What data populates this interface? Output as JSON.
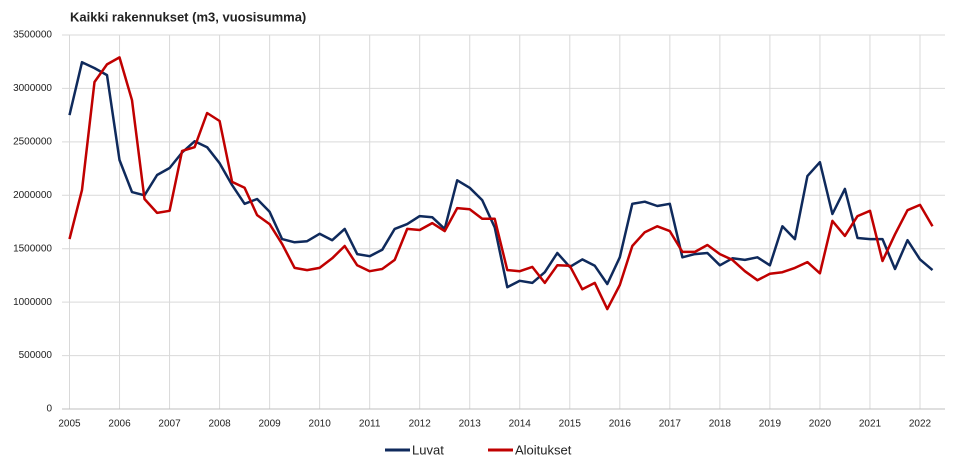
{
  "chart_data": {
    "type": "line",
    "title": "Kaikki rakennukset (m3, vuosisumma)",
    "x": [
      2005,
      2005.25,
      2005.5,
      2005.75,
      2006,
      2006.25,
      2006.5,
      2006.75,
      2007,
      2007.25,
      2007.5,
      2007.75,
      2008,
      2008.25,
      2008.5,
      2008.75,
      2009,
      2009.25,
      2009.5,
      2009.75,
      2010,
      2010.25,
      2010.5,
      2010.75,
      2011,
      2011.25,
      2011.5,
      2011.75,
      2012,
      2012.25,
      2012.5,
      2012.75,
      2013,
      2013.25,
      2013.5,
      2013.75,
      2014,
      2014.25,
      2014.5,
      2014.75,
      2015,
      2015.25,
      2015.5,
      2015.75,
      2016,
      2016.25,
      2016.5,
      2016.75,
      2017,
      2017.25,
      2017.5,
      2017.75,
      2018,
      2018.25,
      2018.5,
      2018.75,
      2019,
      2019.25,
      2019.5,
      2019.75,
      2020,
      2020.25,
      2020.5,
      2020.75,
      2021,
      2021.25,
      2021.5,
      2021.75,
      2022,
      2022.25
    ],
    "series": [
      {
        "name": "Luvat",
        "color": "#0f2a5c",
        "values": [
          2750000,
          3245000,
          3190000,
          3125000,
          2330000,
          2030000,
          2000000,
          2190000,
          2255000,
          2400000,
          2505000,
          2450000,
          2300000,
          2095000,
          1920000,
          1965000,
          1845000,
          1590000,
          1560000,
          1570000,
          1640000,
          1580000,
          1685000,
          1450000,
          1430000,
          1490000,
          1685000,
          1730000,
          1805000,
          1795000,
          1685000,
          2140000,
          2070000,
          1955000,
          1700000,
          1140000,
          1200000,
          1180000,
          1280000,
          1460000,
          1330000,
          1400000,
          1340000,
          1170000,
          1420000,
          1920000,
          1940000,
          1900000,
          1920000,
          1420000,
          1450000,
          1460000,
          1345000,
          1410000,
          1395000,
          1420000,
          1345000,
          1710000,
          1590000,
          2180000,
          2310000,
          1825000,
          2060000,
          1600000,
          1590000,
          1590000,
          1310000,
          1580000,
          1400000,
          1300000
        ]
      },
      {
        "name": "Aloitukset",
        "color": "#c00000",
        "values": [
          1590000,
          2050000,
          3060000,
          3225000,
          3290000,
          2890000,
          1965000,
          1835000,
          1855000,
          2415000,
          2450000,
          2770000,
          2695000,
          2125000,
          2070000,
          1815000,
          1730000,
          1545000,
          1320000,
          1300000,
          1320000,
          1410000,
          1525000,
          1345000,
          1290000,
          1310000,
          1395000,
          1685000,
          1675000,
          1740000,
          1665000,
          1880000,
          1870000,
          1780000,
          1780000,
          1300000,
          1290000,
          1330000,
          1180000,
          1345000,
          1340000,
          1120000,
          1180000,
          935000,
          1160000,
          1525000,
          1655000,
          1710000,
          1665000,
          1470000,
          1470000,
          1535000,
          1450000,
          1395000,
          1290000,
          1205000,
          1265000,
          1280000,
          1320000,
          1375000,
          1270000,
          1760000,
          1620000,
          1805000,
          1855000,
          1385000,
          1635000,
          1860000,
          1910000,
          1710000
        ]
      }
    ],
    "xlim": [
      2004.85,
      2022.5
    ],
    "xticks": [
      2005,
      2006,
      2007,
      2008,
      2009,
      2010,
      2011,
      2012,
      2013,
      2014,
      2015,
      2016,
      2017,
      2018,
      2019,
      2020,
      2021,
      2022
    ],
    "ylim": [
      0,
      3500000
    ],
    "yticks": [
      0,
      500000,
      1000000,
      1500000,
      2000000,
      2500000,
      3000000,
      3500000
    ],
    "grid": true,
    "legend": "bottom"
  }
}
